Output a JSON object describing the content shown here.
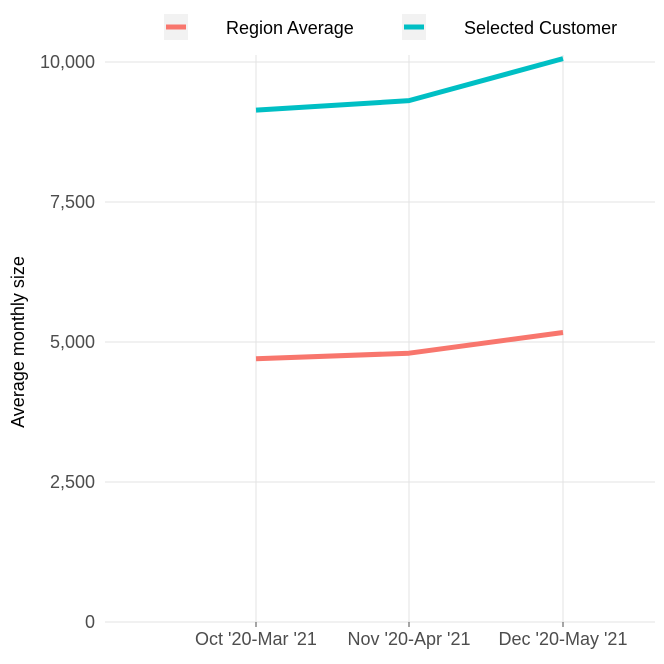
{
  "chart_data": {
    "type": "line",
    "title": "",
    "xlabel": "",
    "ylabel": "Average monthly size",
    "categories": [
      "Oct '20-Mar '21",
      "Nov '20-Apr '21",
      "Dec '20-May '21"
    ],
    "series": [
      {
        "name": "Region Average",
        "color": "#f8766d",
        "values": [
          4700,
          4800,
          5170
        ]
      },
      {
        "name": "Selected Customer",
        "color": "#00bfc4",
        "values": [
          9140,
          9310,
          10060
        ]
      }
    ],
    "ylim": [
      0,
      10000
    ],
    "yticks": [
      0,
      2500,
      5000,
      7500,
      10000
    ],
    "ytick_labels": [
      "0",
      "2,500",
      "5,000",
      "7,500",
      "10,000"
    ],
    "grid": true,
    "legend_position": "top"
  }
}
